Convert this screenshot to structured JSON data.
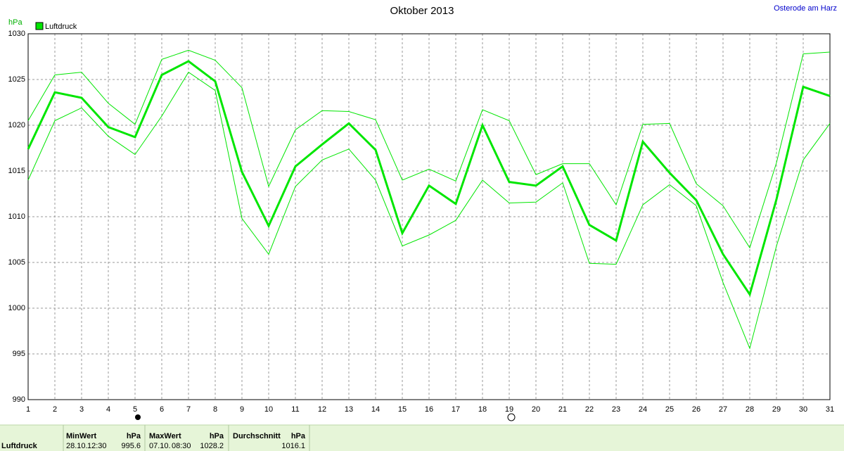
{
  "chart_data": {
    "type": "line",
    "title": "Oktober 2013",
    "station": "Osterode am Harz",
    "y_unit": "hPa",
    "x": [
      1,
      2,
      3,
      4,
      5,
      6,
      7,
      8,
      9,
      10,
      11,
      12,
      13,
      14,
      15,
      16,
      17,
      18,
      19,
      20,
      21,
      22,
      23,
      24,
      25,
      26,
      27,
      28,
      29,
      30,
      31
    ],
    "xlim": [
      1,
      31
    ],
    "xticks": [
      1,
      2,
      3,
      4,
      5,
      6,
      7,
      8,
      9,
      10,
      11,
      12,
      13,
      14,
      15,
      16,
      17,
      18,
      19,
      20,
      21,
      22,
      23,
      24,
      25,
      26,
      27,
      28,
      29,
      30,
      31
    ],
    "ylim": [
      990,
      1030
    ],
    "yticks": [
      990,
      995,
      1000,
      1005,
      1010,
      1015,
      1020,
      1025,
      1030
    ],
    "grid": true,
    "series": [
      {
        "name": "Luftdruck",
        "color": "#00e600",
        "linewidth": 3,
        "values": [
          1017.4,
          1023.6,
          1023.0,
          1019.8,
          1018.7,
          1025.5,
          1027.0,
          1024.8,
          1014.9,
          1009.0,
          1015.5,
          1017.9,
          1020.2,
          1017.3,
          1008.2,
          1013.4,
          1011.4,
          1020.0,
          1013.8,
          1013.4,
          1015.5,
          1009.1,
          1007.4,
          1018.2,
          1014.8,
          1011.8,
          1005.9,
          1001.5,
          1011.9,
          1024.2,
          1023.2
        ]
      },
      {
        "color": "#00e600",
        "linewidth": 1,
        "values": [
          1020.5,
          1025.5,
          1025.8,
          1022.4,
          1020.1,
          1027.2,
          1028.2,
          1027.1,
          1024.1,
          1013.3,
          1019.5,
          1021.6,
          1021.5,
          1020.6,
          1014.0,
          1015.2,
          1013.9,
          1021.7,
          1020.5,
          1014.6,
          1015.8,
          1015.8,
          1011.3,
          1020.1,
          1020.2,
          1013.6,
          1011.2,
          1006.6,
          1015.9,
          1027.8,
          1028.0
        ]
      },
      {
        "color": "#00e600",
        "linewidth": 1,
        "values": [
          1014.0,
          1020.5,
          1021.9,
          1018.8,
          1016.8,
          1021.0,
          1025.8,
          1023.8,
          1009.8,
          1005.9,
          1013.3,
          1016.2,
          1017.4,
          1014.0,
          1006.8,
          1008.0,
          1009.6,
          1014.0,
          1011.5,
          1011.6,
          1013.7,
          1004.9,
          1004.8,
          1011.3,
          1013.5,
          1011.2,
          1002.8,
          995.6,
          1006.8,
          1016.2,
          1020.2
        ]
      }
    ]
  },
  "summary": {
    "row_label": "Luftdruck",
    "columns": [
      {
        "header": "MinWert",
        "unit": "hPa",
        "date": "28.10.",
        "time": "12:30",
        "value": 995.6
      },
      {
        "header": "MaxWert",
        "unit": "hPa",
        "date": "07.10.",
        "time": "08:30",
        "value": 1028.2
      },
      {
        "header": "Durchschnitt",
        "unit": "hPa",
        "value": 1016.1
      }
    ]
  }
}
